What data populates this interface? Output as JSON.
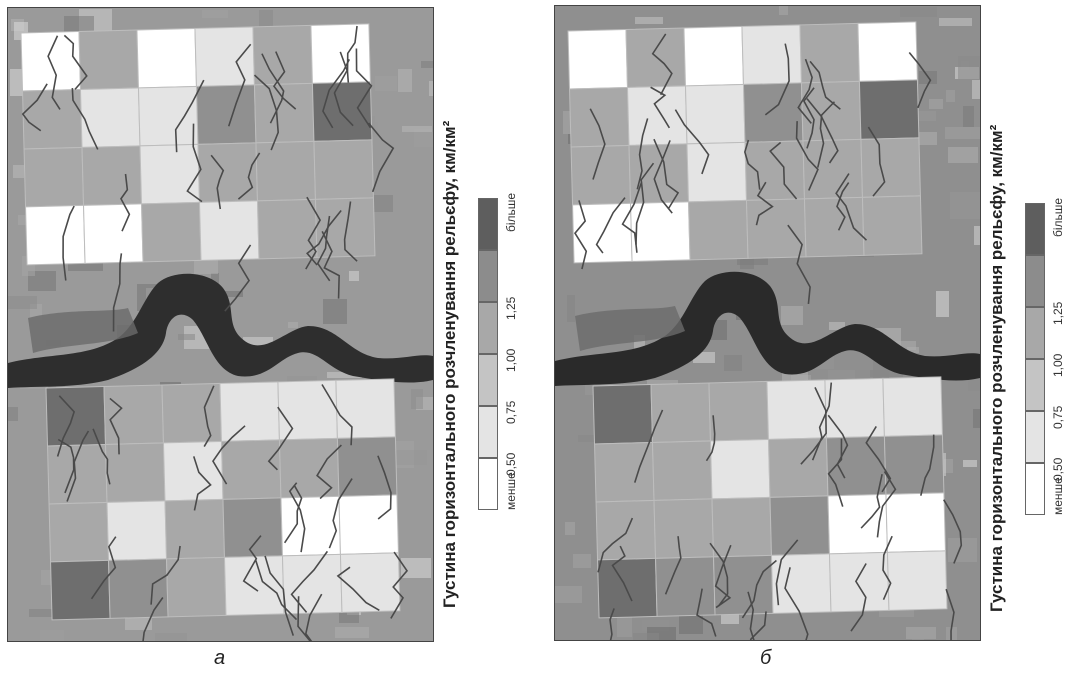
{
  "panels": [
    {
      "caption": "а",
      "background": "#9a9a9a",
      "reservoir_color": "#2e2e2e",
      "grid_top": [
        [
          "#ffffff",
          "#a8a8a8",
          "#ffffff",
          "#e4e4e4",
          "#a8a8a8",
          "#ffffff"
        ],
        [
          "#a8a8a8",
          "#e4e4e4",
          "#e4e4e4",
          "#909090",
          "#a8a8a8",
          "#6e6e6e"
        ],
        [
          "#a8a8a8",
          "#a8a8a8",
          "#e4e4e4",
          "#a8a8a8",
          "#a8a8a8",
          "#a8a8a8"
        ],
        [
          "#ffffff",
          "#ffffff",
          "#a8a8a8",
          "#e4e4e4",
          "#a8a8a8",
          "#a8a8a8"
        ]
      ],
      "grid_bottom": [
        [
          "#6e6e6e",
          "#a8a8a8",
          "#a8a8a8",
          "#e4e4e4",
          "#e4e4e4",
          "#e4e4e4"
        ],
        [
          "#a8a8a8",
          "#a8a8a8",
          "#e4e4e4",
          "#a8a8a8",
          "#a8a8a8",
          "#909090"
        ],
        [
          "#a8a8a8",
          "#e4e4e4",
          "#a8a8a8",
          "#909090",
          "#ffffff",
          "#ffffff"
        ],
        [
          "#6e6e6e",
          "#909090",
          "#a8a8a8",
          "#e4e4e4",
          "#e4e4e4",
          "#e4e4e4"
        ]
      ]
    },
    {
      "caption": "б",
      "background": "#8f8f8f",
      "reservoir_color": "#2a2a2a",
      "grid_top": [
        [
          "#ffffff",
          "#a8a8a8",
          "#ffffff",
          "#e4e4e4",
          "#a8a8a8",
          "#ffffff"
        ],
        [
          "#a8a8a8",
          "#e4e4e4",
          "#e4e4e4",
          "#909090",
          "#a8a8a8",
          "#6e6e6e"
        ],
        [
          "#a8a8a8",
          "#a8a8a8",
          "#e4e4e4",
          "#a8a8a8",
          "#a8a8a8",
          "#a8a8a8"
        ],
        [
          "#ffffff",
          "#ffffff",
          "#a8a8a8",
          "#a8a8a8",
          "#a8a8a8",
          "#a8a8a8"
        ]
      ],
      "grid_bottom": [
        [
          "#6e6e6e",
          "#a8a8a8",
          "#a8a8a8",
          "#e4e4e4",
          "#e4e4e4",
          "#e4e4e4"
        ],
        [
          "#a8a8a8",
          "#a8a8a8",
          "#e4e4e4",
          "#a8a8a8",
          "#909090",
          "#909090"
        ],
        [
          "#a8a8a8",
          "#a8a8a8",
          "#a8a8a8",
          "#909090",
          "#ffffff",
          "#ffffff"
        ],
        [
          "#6e6e6e",
          "#909090",
          "#909090",
          "#e4e4e4",
          "#e4e4e4",
          "#e4e4e4"
        ]
      ]
    }
  ],
  "legend": {
    "title": "Густина горизонтального розчленування рельєфу, км/км²",
    "classes": [
      {
        "label": "менше",
        "color": "#ffffff"
      },
      {
        "label": "0,50",
        "color": "#e4e4e4"
      },
      {
        "label": "0,75",
        "color": "#c4c4c4"
      },
      {
        "label": "1,00",
        "color": "#a8a8a8"
      },
      {
        "label": "1,25",
        "color": "#8c8c8c"
      },
      {
        "label": "більше",
        "color": "#5e5e5e"
      }
    ]
  }
}
